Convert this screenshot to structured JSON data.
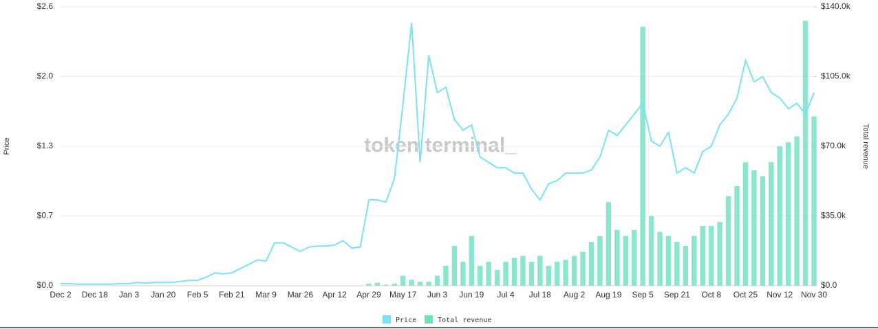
{
  "chart_data": {
    "type": "combo",
    "watermark": "token terminal_",
    "y_label": "Price",
    "y2_label": "Total revenue",
    "categories": [
      "Dec 2",
      null,
      null,
      null,
      "Dec 18",
      null,
      null,
      null,
      "Jan 3",
      null,
      null,
      null,
      "Jan 20",
      null,
      null,
      null,
      "Feb 5",
      null,
      null,
      null,
      "Feb 21",
      null,
      null,
      null,
      "Mar 9",
      null,
      null,
      null,
      "Mar 26",
      null,
      null,
      null,
      "Apr 12",
      null,
      null,
      null,
      "Apr 29",
      null,
      null,
      null,
      "May 17",
      null,
      null,
      null,
      "Jun 3",
      null,
      null,
      null,
      "Jun 19",
      null,
      null,
      null,
      "Jul 4",
      null,
      null,
      null,
      "Jul 18",
      null,
      null,
      null,
      "Aug 2",
      null,
      null,
      null,
      "Aug 19",
      null,
      null,
      null,
      "Sep 5",
      null,
      null,
      null,
      "Sep 21",
      null,
      null,
      null,
      "Oct 8",
      null,
      null,
      null,
      "Oct 25",
      null,
      null,
      null,
      "Nov 12",
      null,
      null,
      null,
      "Nov 30"
    ],
    "series": [
      {
        "name": "Price",
        "type": "line",
        "color": "#78e3f7",
        "values": [
          0.02,
          0.02,
          0.015,
          0.015,
          0.015,
          0.015,
          0.015,
          0.02,
          0.02,
          0.03,
          0.025,
          0.03,
          0.03,
          0.03,
          0.04,
          0.05,
          0.05,
          0.08,
          0.12,
          0.11,
          0.12,
          0.16,
          0.2,
          0.24,
          0.23,
          0.4,
          0.4,
          0.36,
          0.32,
          0.36,
          0.37,
          0.37,
          0.38,
          0.42,
          0.35,
          0.36,
          0.8,
          0.8,
          0.78,
          1.0,
          1.7,
          2.45,
          1.15,
          2.15,
          1.8,
          1.85,
          1.55,
          1.45,
          1.5,
          1.2,
          1.15,
          1.1,
          1.1,
          1.05,
          1.05,
          0.9,
          0.8,
          0.95,
          0.98,
          1.05,
          1.05,
          1.05,
          1.08,
          1.2,
          1.45,
          1.4,
          1.5,
          1.6,
          1.7,
          1.35,
          1.3,
          1.43,
          1.05,
          1.1,
          1.05,
          1.25,
          1.3,
          1.5,
          1.6,
          1.75,
          2.1,
          1.9,
          1.95,
          1.8,
          1.75,
          1.65,
          1.7,
          1.6,
          1.8
        ]
      },
      {
        "name": "Total revenue",
        "type": "bar",
        "axis": "y2",
        "color": "#6ee0c4",
        "values": [
          100,
          100,
          100,
          100,
          100,
          100,
          100,
          100,
          100,
          100,
          100,
          100,
          100,
          100,
          100,
          100,
          100,
          100,
          100,
          100,
          100,
          100,
          100,
          100,
          100,
          100,
          100,
          100,
          100,
          100,
          100,
          100,
          100,
          100,
          100,
          100,
          1000,
          1500,
          500,
          1000,
          5000,
          3000,
          2000,
          2000,
          5000,
          10000,
          20000,
          12000,
          25000,
          10000,
          12000,
          8000,
          12000,
          14000,
          15000,
          12000,
          15000,
          10000,
          12000,
          13000,
          15000,
          17000,
          22000,
          25000,
          42000,
          28000,
          25000,
          28000,
          130000,
          35000,
          27000,
          25000,
          22000,
          20000,
          25000,
          30000,
          30000,
          32000,
          45000,
          50000,
          62000,
          58000,
          55000,
          62000,
          70000,
          72000,
          75000,
          133000,
          85000
        ]
      }
    ],
    "ylim": [
      0,
      2.6
    ],
    "yticks": [
      {
        "value": 0,
        "label": "$0.0"
      },
      {
        "value": 0.65,
        "label": "$0.7"
      },
      {
        "value": 1.3,
        "label": "$1.3"
      },
      {
        "value": 1.95,
        "label": "$2.0"
      },
      {
        "value": 2.6,
        "label": "$2.6"
      }
    ],
    "y2lim": [
      0,
      140000
    ],
    "y2ticks": [
      {
        "value": 0,
        "label": "$0.0"
      },
      {
        "value": 35000,
        "label": "$35.0k"
      },
      {
        "value": 70000,
        "label": "$70.0k"
      },
      {
        "value": 105000,
        "label": "$105.0k"
      },
      {
        "value": 140000,
        "label": "$140.0k"
      }
    ],
    "grid": true
  }
}
